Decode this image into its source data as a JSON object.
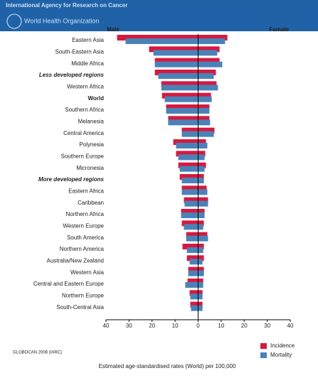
{
  "header": {
    "org": "International Agency for Research on Cancer",
    "who": "World Health Organization"
  },
  "chart_data": {
    "type": "butterfly-bar",
    "left_label": "Male",
    "right_label": "Female",
    "categories": [
      "Eastern Asia",
      "South-Eastern Asia",
      "Middle Africa",
      "Less developed regions",
      "Western Africa",
      "World",
      "Southern Africa",
      "Melanesia",
      "Central America",
      "Polynesia",
      "Southern Europe",
      "Micronesia",
      "More developed regions",
      "Eastern Africa",
      "Caribbean",
      "Northern Africa",
      "Western Europe",
      "South America",
      "Northern America",
      "Australia/New Zealand",
      "Western Asia",
      "Central and Eastern Europe",
      "Northern Europe",
      "South-Central Asia"
    ],
    "series": [
      {
        "name": "Incidence",
        "color": "#d7193f",
        "male": [
          -35.2,
          -21.3,
          -18.8,
          -18.8,
          -16,
          -15.7,
          -13.9,
          -13,
          -7.1,
          -10.8,
          -9.6,
          -8.6,
          -8,
          -7.1,
          -6.2,
          -7.4,
          -7.1,
          -5.2,
          -6.8,
          -4.9,
          -4.3,
          -4.6,
          -3.7,
          -3.4
        ],
        "female": [
          12.7,
          9.3,
          9.3,
          7.7,
          8,
          5.6,
          4.9,
          4.9,
          7.1,
          3.4,
          3.1,
          3.4,
          2.5,
          3.7,
          4.3,
          2.8,
          2.5,
          4,
          2.5,
          2.5,
          2.5,
          2.2,
          1.9,
          1.9
        ]
      },
      {
        "name": "Mortality",
        "color": "#4a82b8",
        "male": [
          -31.5,
          -19.4,
          -18.8,
          -17.3,
          -16,
          -14.5,
          -13.9,
          -13,
          -7.1,
          -9.6,
          -8.6,
          -8,
          -7.1,
          -7.1,
          -5.9,
          -7.4,
          -6.2,
          -5.2,
          -4.9,
          -3.7,
          -4.3,
          -5.6,
          -3.4,
          -3.1
        ],
        "female": [
          11.7,
          8.3,
          10.5,
          6.8,
          8.6,
          5.9,
          4.9,
          5.2,
          6.8,
          4,
          2.8,
          2.8,
          2.5,
          4,
          4.3,
          2.8,
          2.2,
          4.3,
          2.2,
          1.9,
          2.5,
          2.2,
          1.9,
          1.9
        ]
      }
    ],
    "xlim": [
      -40,
      40
    ],
    "xticks": [
      {
        "value": -40,
        "label": "40"
      },
      {
        "value": -30,
        "label": "30"
      },
      {
        "value": -20,
        "label": "20"
      },
      {
        "value": -10,
        "label": "10"
      },
      0,
      10,
      20,
      30,
      40
    ],
    "xlabel": "Estimated age-standardised rates (World) per 100,000",
    "source": "GLOBOCAN 2008 (IARC)"
  }
}
